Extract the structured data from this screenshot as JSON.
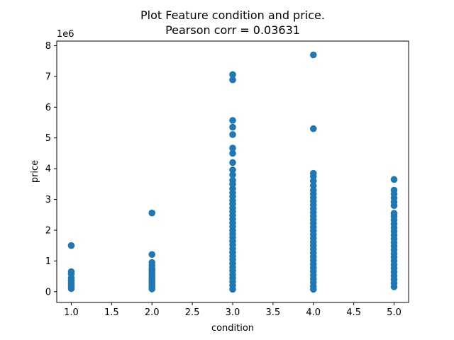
{
  "chart_data": {
    "type": "scatter",
    "title_lines": [
      "Plot Feature condition and price.",
      "Pearson corr = 0.03631"
    ],
    "xlabel": "condition",
    "ylabel": "price",
    "offset_label": "1e6",
    "xlim": [
      0.82,
      5.18
    ],
    "ylim": [
      -0.35,
      8.15
    ],
    "xticks": [
      1.0,
      1.5,
      2.0,
      2.5,
      3.0,
      3.5,
      4.0,
      4.5,
      5.0
    ],
    "xtick_labels": [
      "1.0",
      "1.5",
      "2.0",
      "2.5",
      "3.0",
      "3.5",
      "4.0",
      "4.5",
      "5.0"
    ],
    "yticks": [
      0,
      1,
      2,
      3,
      4,
      5,
      6,
      7,
      8
    ],
    "ytick_labels": [
      "0",
      "1",
      "2",
      "3",
      "4",
      "5",
      "6",
      "7",
      "8"
    ],
    "grid": false,
    "marker_color": "#1f77b4",
    "series": [
      {
        "points": [
          {
            "x": 1,
            "y": 1.5
          },
          {
            "x": 1,
            "y": 0.65
          },
          {
            "x": 1,
            "y": 0.58
          },
          {
            "x": 1,
            "y": 0.45
          },
          {
            "x": 1,
            "y": 0.36
          },
          {
            "x": 1,
            "y": 0.28
          },
          {
            "x": 1,
            "y": 0.22
          },
          {
            "x": 1,
            "y": 0.16
          },
          {
            "x": 1,
            "y": 0.1
          },
          {
            "x": 2,
            "y": 2.56
          },
          {
            "x": 2,
            "y": 1.21
          },
          {
            "x": 2,
            "y": 0.95
          },
          {
            "x": 2,
            "y": 0.85
          },
          {
            "x": 2,
            "y": 0.75
          },
          {
            "x": 2,
            "y": 0.68
          },
          {
            "x": 2,
            "y": 0.6
          },
          {
            "x": 2,
            "y": 0.52
          },
          {
            "x": 2,
            "y": 0.45
          },
          {
            "x": 2,
            "y": 0.38
          },
          {
            "x": 2,
            "y": 0.3
          },
          {
            "x": 2,
            "y": 0.23
          },
          {
            "x": 2,
            "y": 0.16
          },
          {
            "x": 2,
            "y": 0.09
          },
          {
            "x": 3,
            "y": 7.06
          },
          {
            "x": 3,
            "y": 6.89
          },
          {
            "x": 3,
            "y": 5.57
          },
          {
            "x": 3,
            "y": 5.35
          },
          {
            "x": 3,
            "y": 5.11
          },
          {
            "x": 3,
            "y": 4.67
          },
          {
            "x": 3,
            "y": 4.5
          },
          {
            "x": 3,
            "y": 4.2
          },
          {
            "x": 3,
            "y": 3.96
          },
          {
            "x": 3,
            "y": 3.8
          },
          {
            "x": 3,
            "y": 3.62
          },
          {
            "x": 3,
            "y": 3.5
          },
          {
            "x": 3,
            "y": 3.35
          },
          {
            "x": 3,
            "y": 3.22
          },
          {
            "x": 3,
            "y": 3.1
          },
          {
            "x": 3,
            "y": 2.96
          },
          {
            "x": 3,
            "y": 2.85
          },
          {
            "x": 3,
            "y": 2.72
          },
          {
            "x": 3,
            "y": 2.6
          },
          {
            "x": 3,
            "y": 2.48
          },
          {
            "x": 3,
            "y": 2.36
          },
          {
            "x": 3,
            "y": 2.24
          },
          {
            "x": 3,
            "y": 2.12
          },
          {
            "x": 3,
            "y": 2.0
          },
          {
            "x": 3,
            "y": 1.88
          },
          {
            "x": 3,
            "y": 1.76
          },
          {
            "x": 3,
            "y": 1.64
          },
          {
            "x": 3,
            "y": 1.52
          },
          {
            "x": 3,
            "y": 1.4
          },
          {
            "x": 3,
            "y": 1.28
          },
          {
            "x": 3,
            "y": 1.16
          },
          {
            "x": 3,
            "y": 1.04
          },
          {
            "x": 3,
            "y": 0.92
          },
          {
            "x": 3,
            "y": 0.8
          },
          {
            "x": 3,
            "y": 0.68
          },
          {
            "x": 3,
            "y": 0.56
          },
          {
            "x": 3,
            "y": 0.44
          },
          {
            "x": 3,
            "y": 0.32
          },
          {
            "x": 3,
            "y": 0.2
          },
          {
            "x": 3,
            "y": 0.08
          },
          {
            "x": 4,
            "y": 7.7
          },
          {
            "x": 4,
            "y": 5.3
          },
          {
            "x": 4,
            "y": 3.85
          },
          {
            "x": 4,
            "y": 3.75
          },
          {
            "x": 4,
            "y": 3.6
          },
          {
            "x": 4,
            "y": 3.45
          },
          {
            "x": 4,
            "y": 3.3
          },
          {
            "x": 4,
            "y": 3.18
          },
          {
            "x": 4,
            "y": 3.06
          },
          {
            "x": 4,
            "y": 2.94
          },
          {
            "x": 4,
            "y": 2.82
          },
          {
            "x": 4,
            "y": 2.7
          },
          {
            "x": 4,
            "y": 2.58
          },
          {
            "x": 4,
            "y": 2.46
          },
          {
            "x": 4,
            "y": 2.34
          },
          {
            "x": 4,
            "y": 2.22
          },
          {
            "x": 4,
            "y": 2.1
          },
          {
            "x": 4,
            "y": 1.98
          },
          {
            "x": 4,
            "y": 1.86
          },
          {
            "x": 4,
            "y": 1.74
          },
          {
            "x": 4,
            "y": 1.62
          },
          {
            "x": 4,
            "y": 1.5
          },
          {
            "x": 4,
            "y": 1.38
          },
          {
            "x": 4,
            "y": 1.26
          },
          {
            "x": 4,
            "y": 1.14
          },
          {
            "x": 4,
            "y": 1.02
          },
          {
            "x": 4,
            "y": 0.9
          },
          {
            "x": 4,
            "y": 0.78
          },
          {
            "x": 4,
            "y": 0.66
          },
          {
            "x": 4,
            "y": 0.54
          },
          {
            "x": 4,
            "y": 0.42
          },
          {
            "x": 4,
            "y": 0.3
          },
          {
            "x": 4,
            "y": 0.18
          },
          {
            "x": 4,
            "y": 0.08
          },
          {
            "x": 5,
            "y": 3.65
          },
          {
            "x": 5,
            "y": 3.3
          },
          {
            "x": 5,
            "y": 3.18
          },
          {
            "x": 5,
            "y": 3.05
          },
          {
            "x": 5,
            "y": 2.92
          },
          {
            "x": 5,
            "y": 2.8
          },
          {
            "x": 5,
            "y": 2.55
          },
          {
            "x": 5,
            "y": 2.45
          },
          {
            "x": 5,
            "y": 2.33
          },
          {
            "x": 5,
            "y": 2.2
          },
          {
            "x": 5,
            "y": 2.08
          },
          {
            "x": 5,
            "y": 1.96
          },
          {
            "x": 5,
            "y": 1.84
          },
          {
            "x": 5,
            "y": 1.72
          },
          {
            "x": 5,
            "y": 1.6
          },
          {
            "x": 5,
            "y": 1.48
          },
          {
            "x": 5,
            "y": 1.36
          },
          {
            "x": 5,
            "y": 1.24
          },
          {
            "x": 5,
            "y": 1.12
          },
          {
            "x": 5,
            "y": 1.0
          },
          {
            "x": 5,
            "y": 0.88
          },
          {
            "x": 5,
            "y": 0.76
          },
          {
            "x": 5,
            "y": 0.64
          },
          {
            "x": 5,
            "y": 0.52
          },
          {
            "x": 5,
            "y": 0.4
          },
          {
            "x": 5,
            "y": 0.28
          },
          {
            "x": 5,
            "y": 0.16
          }
        ]
      }
    ]
  }
}
